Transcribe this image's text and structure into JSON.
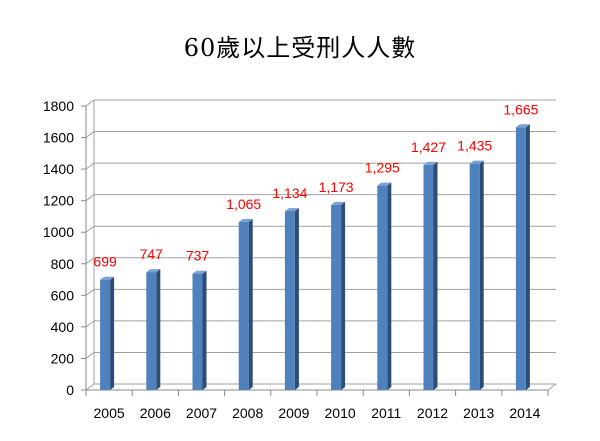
{
  "chart_data": {
    "type": "bar",
    "title": "60歲以上受刑人人數",
    "categories": [
      "2005",
      "2006",
      "2007",
      "2008",
      "2009",
      "2010",
      "2011",
      "2012",
      "2013",
      "2014"
    ],
    "values": [
      699,
      747,
      737,
      1065,
      1134,
      1173,
      1295,
      1427,
      1435,
      1665
    ],
    "data_labels": [
      "699",
      "747",
      "737",
      "1,065",
      "1,134",
      "1,173",
      "1,295",
      "1,427",
      "1,435",
      "1,665"
    ],
    "ylim": [
      0,
      1800
    ],
    "yticks": [
      0,
      200,
      400,
      600,
      800,
      1000,
      1200,
      1400,
      1600,
      1800
    ],
    "grid": true,
    "style": "3d-column",
    "colors": {
      "bar": "#4f81bd",
      "bar_side": "#2c4d75",
      "bar_top": "#7ba0d4",
      "data_label": "#ff0000",
      "grid": "#a0a0a0"
    }
  }
}
